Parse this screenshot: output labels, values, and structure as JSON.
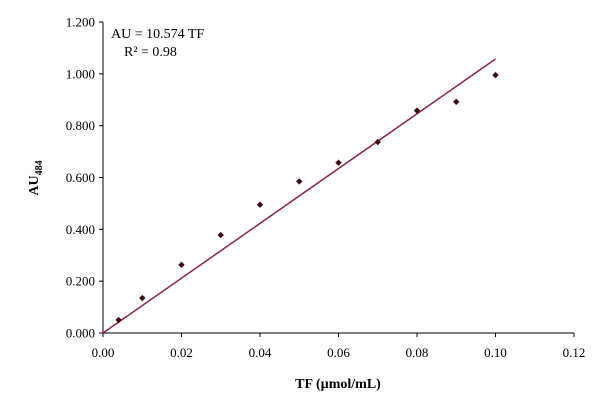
{
  "chart_data": {
    "type": "scatter",
    "xlabel": "TF (µmol/mL)",
    "ylabel_main": "AU",
    "ylabel_sub": "484",
    "xlim": [
      0,
      0.12
    ],
    "ylim": [
      0,
      1.2
    ],
    "x_ticks": [
      "0.00",
      "0.02",
      "0.04",
      "0.06",
      "0.08",
      "0.10",
      "0.12"
    ],
    "y_ticks": [
      "0.000",
      "0.200",
      "0.400",
      "0.600",
      "0.800",
      "1.000",
      "1.200"
    ],
    "grid": false,
    "series": [
      {
        "x": [
          0.004,
          0.01,
          0.02,
          0.03,
          0.04,
          0.05,
          0.06,
          0.07,
          0.08,
          0.09,
          0.1
        ],
        "y": [
          0.05,
          0.135,
          0.263,
          0.378,
          0.495,
          0.585,
          0.657,
          0.737,
          0.858,
          0.892,
          0.995
        ],
        "marker": "diamond",
        "color": "#3b0a10"
      }
    ],
    "trendline": {
      "slope": 10.574,
      "intercept": 0,
      "x_range": [
        0,
        0.1
      ],
      "color": "#8b2252"
    },
    "annotations": [
      "AU = 10.574 TF",
      "R² = 0.98"
    ]
  }
}
